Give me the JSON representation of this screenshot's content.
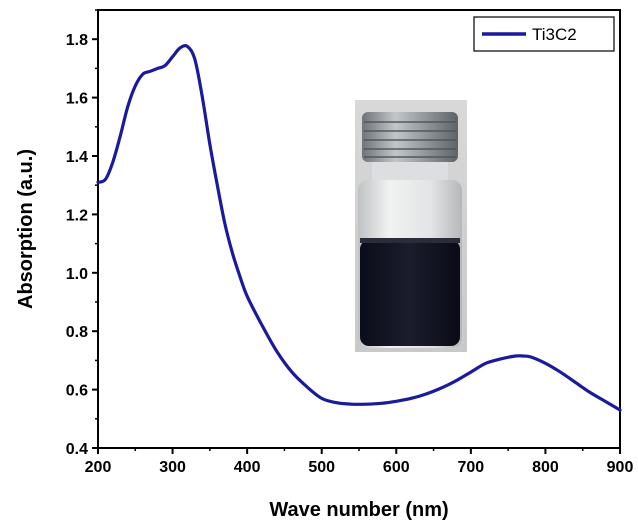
{
  "chart_data": {
    "type": "line",
    "xlabel": "Wave number (nm)",
    "ylabel": "Absorption (a.u.)",
    "xlim": [
      200,
      900
    ],
    "ylim": [
      0.4,
      1.9
    ],
    "xticks": [
      "200",
      "300",
      "400",
      "500",
      "600",
      "700",
      "800",
      "900"
    ],
    "yticks": [
      "0.4",
      "0.6",
      "0.8",
      "1.0",
      "1.2",
      "1.4",
      "1.6",
      "1.8"
    ],
    "grid": false,
    "legend_position": "top-right",
    "series": [
      {
        "name": "Ti3C2",
        "color": "#1a1a9c",
        "x": [
          200,
          210,
          220,
          230,
          240,
          250,
          260,
          270,
          280,
          290,
          300,
          310,
          320,
          330,
          340,
          350,
          360,
          370,
          380,
          390,
          400,
          420,
          440,
          460,
          480,
          500,
          520,
          540,
          560,
          580,
          600,
          620,
          640,
          660,
          680,
          700,
          720,
          740,
          760,
          770,
          780,
          800,
          820,
          840,
          860,
          880,
          900
        ],
        "y": [
          1.31,
          1.32,
          1.38,
          1.47,
          1.57,
          1.64,
          1.68,
          1.69,
          1.7,
          1.71,
          1.74,
          1.77,
          1.775,
          1.73,
          1.6,
          1.44,
          1.3,
          1.17,
          1.07,
          0.99,
          0.92,
          0.82,
          0.73,
          0.66,
          0.61,
          0.57,
          0.555,
          0.55,
          0.55,
          0.553,
          0.56,
          0.57,
          0.585,
          0.605,
          0.63,
          0.66,
          0.69,
          0.705,
          0.715,
          0.715,
          0.712,
          0.69,
          0.66,
          0.625,
          0.59,
          0.56,
          0.53
        ]
      }
    ]
  },
  "inset": {
    "content": "photo of vial with dark dispersion"
  }
}
